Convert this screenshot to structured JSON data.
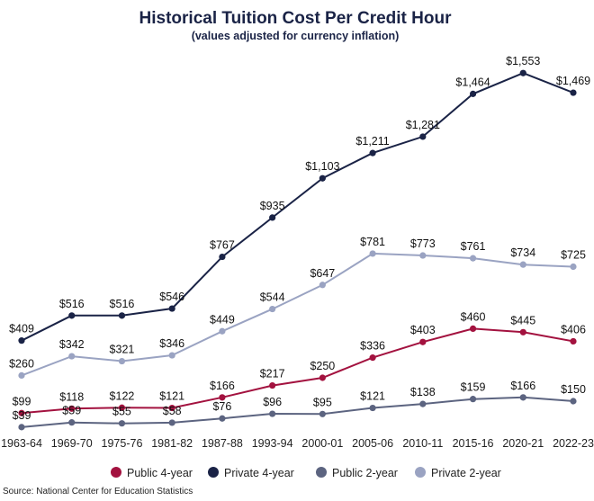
{
  "chart_data": {
    "type": "line",
    "title": "Historical Tuition Cost Per Credit Hour",
    "subtitle": "(values adjusted for currency inflation)",
    "source": "Source: National Center for Education Statistics",
    "categories": [
      "1963-64",
      "1969-70",
      "1975-76",
      "1981-82",
      "1987-88",
      "1993-94",
      "2000-01",
      "2005-06",
      "2010-11",
      "2015-16",
      "2020-21",
      "2022-23"
    ],
    "ylim": [
      0,
      1600
    ],
    "grid": false,
    "legend_position": "bottom",
    "series": [
      {
        "name": "Public 4-year",
        "color": "#a3123f",
        "values": [
          99,
          118,
          122,
          121,
          166,
          217,
          250,
          336,
          403,
          460,
          445,
          406
        ],
        "labels": [
          "$99",
          "$118",
          "$122",
          "$121",
          "$166",
          "$217",
          "$250",
          "$336",
          "$403",
          "$460",
          "$445",
          "$406"
        ]
      },
      {
        "name": "Private 4-year",
        "color": "#1a2346",
        "values": [
          409,
          516,
          516,
          546,
          767,
          935,
          1103,
          1211,
          1281,
          1464,
          1553,
          1469
        ],
        "labels": [
          "$409",
          "$516",
          "$516",
          "$546",
          "$767",
          "$935",
          "$1,103",
          "$1,211",
          "$1,281",
          "$1,464",
          "$1,553",
          "$1,469"
        ]
      },
      {
        "name": "Public 2-year",
        "color": "#5c6480",
        "values": [
          39,
          59,
          55,
          58,
          76,
          96,
          95,
          121,
          138,
          159,
          166,
          150
        ],
        "labels": [
          "$39",
          "$59",
          "$55",
          "$58",
          "$76",
          "$96",
          "$95",
          "$121",
          "$138",
          "$159",
          "$166",
          "$150"
        ]
      },
      {
        "name": "Private 2-year",
        "color": "#9aa3c2",
        "values": [
          260,
          342,
          321,
          346,
          449,
          544,
          647,
          781,
          773,
          761,
          734,
          725
        ],
        "labels": [
          "$260",
          "$342",
          "$321",
          "$346",
          "$449",
          "$544",
          "$647",
          "$781",
          "$773",
          "$761",
          "$734",
          "$725"
        ]
      }
    ]
  }
}
